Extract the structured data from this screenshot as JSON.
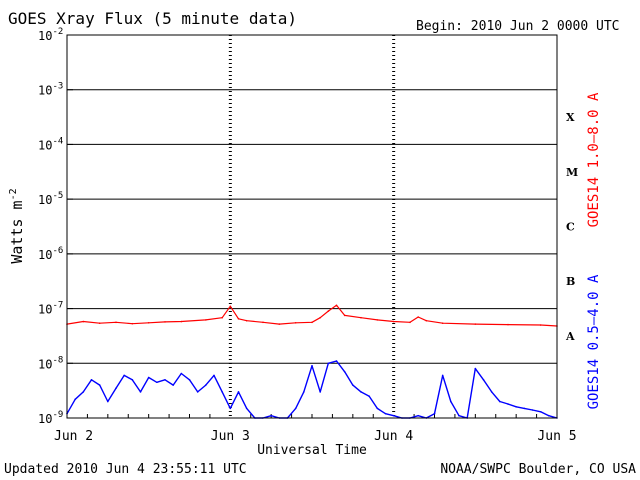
{
  "chart_data": {
    "type": "line",
    "title": "GOES Xray Flux (5 minute data)",
    "begin_label": "Begin:  2010 Jun 2 0000 UTC",
    "xlabel": "Universal Time",
    "ylabel_base": "Watts m",
    "ylabel_exp": "-2",
    "x_ticks": [
      "Jun 2",
      "Jun 3",
      "Jun 4",
      "Jun 5"
    ],
    "x_range_days": [
      0,
      3
    ],
    "y_scale": "log",
    "ylim": [
      1e-09,
      0.01
    ],
    "y_ticks": [
      {
        "exp": "-2",
        "value": 0.01
      },
      {
        "exp": "-3",
        "value": 0.001
      },
      {
        "exp": "-4",
        "value": 0.0001
      },
      {
        "exp": "-5",
        "value": 1e-05
      },
      {
        "exp": "-6",
        "value": 1e-06
      },
      {
        "exp": "-7",
        "value": 1e-07
      },
      {
        "exp": "-8",
        "value": 1e-08
      },
      {
        "exp": "-9",
        "value": 1e-09
      }
    ],
    "flare_classes": [
      {
        "label": "X",
        "value": 0.0001
      },
      {
        "label": "M",
        "value": 1e-05
      },
      {
        "label": "C",
        "value": 1e-06
      },
      {
        "label": "B",
        "value": 1e-07
      },
      {
        "label": "A",
        "value": 1e-08
      }
    ],
    "series": [
      {
        "name": "GOES14 1.0–8.0 A",
        "color": "#ff0000",
        "x": [
          0.0,
          0.1,
          0.2,
          0.3,
          0.4,
          0.5,
          0.6,
          0.7,
          0.85,
          0.95,
          1.0,
          1.05,
          1.1,
          1.2,
          1.3,
          1.4,
          1.5,
          1.55,
          1.6,
          1.65,
          1.7,
          1.8,
          1.9,
          2.0,
          2.1,
          2.15,
          2.2,
          2.3,
          2.5,
          2.7,
          2.9,
          3.0
        ],
        "y": [
          5.2e-08,
          5.8e-08,
          5.4e-08,
          5.6e-08,
          5.3e-08,
          5.5e-08,
          5.7e-08,
          5.8e-08,
          6.2e-08,
          6.8e-08,
          1.1e-07,
          6.5e-08,
          6e-08,
          5.6e-08,
          5.2e-08,
          5.5e-08,
          5.6e-08,
          6.8e-08,
          9e-08,
          1.15e-07,
          7.5e-08,
          6.8e-08,
          6.2e-08,
          5.8e-08,
          5.6e-08,
          7e-08,
          6e-08,
          5.4e-08,
          5.2e-08,
          5.1e-08,
          5e-08,
          4.8e-08
        ]
      },
      {
        "name": "GOES14 0.5–4.0 A",
        "color": "#0000ff",
        "x": [
          0.0,
          0.05,
          0.1,
          0.15,
          0.2,
          0.25,
          0.3,
          0.35,
          0.4,
          0.45,
          0.5,
          0.55,
          0.6,
          0.65,
          0.7,
          0.75,
          0.8,
          0.85,
          0.9,
          0.95,
          1.0,
          1.05,
          1.1,
          1.15,
          1.2,
          1.25,
          1.3,
          1.35,
          1.4,
          1.45,
          1.5,
          1.55,
          1.6,
          1.65,
          1.7,
          1.75,
          1.8,
          1.85,
          1.9,
          1.95,
          2.0,
          2.05,
          2.1,
          2.15,
          2.2,
          2.25,
          2.3,
          2.35,
          2.4,
          2.45,
          2.5,
          2.55,
          2.6,
          2.65,
          2.7,
          2.75,
          2.8,
          2.85,
          2.9,
          2.95,
          3.0
        ],
        "y": [
          1.2e-09,
          2.2e-09,
          3e-09,
          5e-09,
          4e-09,
          2e-09,
          3.5e-09,
          6e-09,
          5e-09,
          3e-09,
          5.5e-09,
          4.5e-09,
          5e-09,
          4e-09,
          6.5e-09,
          5e-09,
          3e-09,
          4e-09,
          6e-09,
          3e-09,
          1.5e-09,
          3e-09,
          1.5e-09,
          1e-09,
          1e-09,
          1.1e-09,
          1e-09,
          1e-09,
          1.5e-09,
          3e-09,
          9e-09,
          3e-09,
          1e-08,
          1.1e-08,
          7e-09,
          4e-09,
          3e-09,
          2.5e-09,
          1.5e-09,
          1.2e-09,
          1.1e-09,
          1e-09,
          1e-09,
          1.1e-09,
          1e-09,
          1.2e-09,
          6e-09,
          2e-09,
          1.1e-09,
          1e-09,
          8e-09,
          5e-09,
          3e-09,
          2e-09,
          1.8e-09,
          1.6e-09,
          1.5e-09,
          1.4e-09,
          1.3e-09,
          1.1e-09,
          1e-09
        ]
      }
    ],
    "grid": "horizontal lines at each decade from 1e-8 to 1e-3; dotted vertical lines at each day boundary"
  },
  "footer": {
    "updated": "Updated 2010 Jun  4 23:55:11 UTC",
    "credit": "NOAA/SWPC Boulder, CO USA"
  }
}
